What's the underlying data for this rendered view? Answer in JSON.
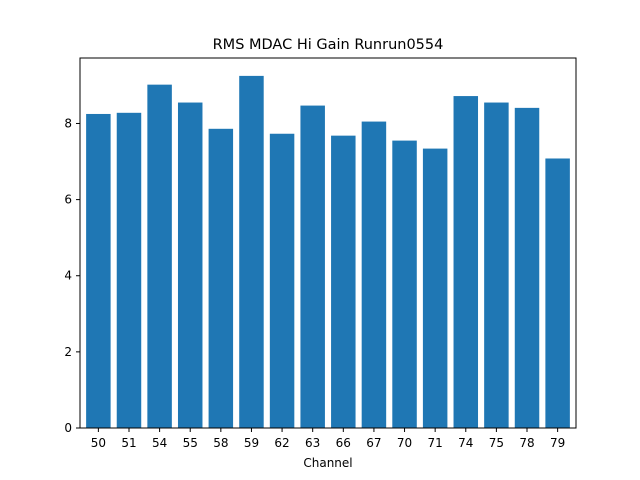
{
  "chart_data": {
    "type": "bar",
    "title": "RMS MDAC Hi Gain Runrun0554",
    "xlabel": "Channel",
    "ylabel": "",
    "categories": [
      "50",
      "51",
      "54",
      "55",
      "58",
      "59",
      "62",
      "63",
      "66",
      "67",
      "70",
      "71",
      "74",
      "75",
      "78",
      "79"
    ],
    "values": [
      8.25,
      8.28,
      9.02,
      8.55,
      7.86,
      9.25,
      7.73,
      8.47,
      7.68,
      8.05,
      7.55,
      7.34,
      8.72,
      8.55,
      8.41,
      7.08
    ],
    "ylim": [
      0,
      9.72
    ],
    "yticks": [
      0,
      2,
      4,
      6,
      8
    ],
    "bar_color": "#1f77b4",
    "grid": false,
    "legend": "none"
  }
}
